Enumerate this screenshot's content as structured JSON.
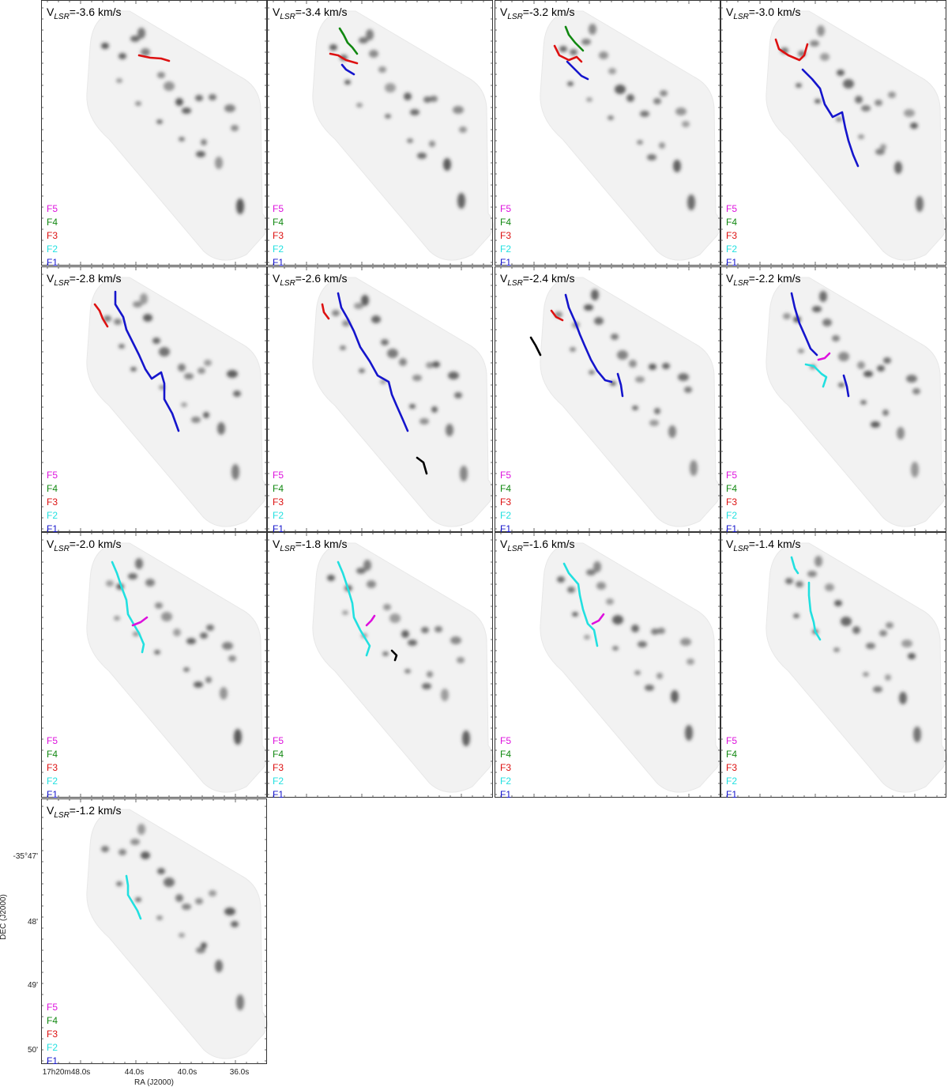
{
  "colors": {
    "F1": "#1515cc",
    "F2": "#22e0e0",
    "F3": "#dd1111",
    "F4": "#118811",
    "F5": "#dd11dd",
    "other": "#000000"
  },
  "chart_data": {
    "type": "channel-map grid",
    "xlabel": "RA (J2000)",
    "ylabel": "DEC (J2000)",
    "x_tick_labels": [
      "17h20m48.0s",
      "44.0s",
      "40.0s",
      "36.0s"
    ],
    "y_tick_labels": [
      "-35°47'",
      "48'",
      "49'",
      "50'"
    ],
    "legend": [
      "F5",
      "F4",
      "F3",
      "F2",
      "F1"
    ],
    "panels": [
      {
        "title_prefix": "V",
        "title_sub": "LSR",
        "title_suffix": "=-3.6 km/s",
        "velocity": -3.6,
        "filaments": [
          "F3"
        ]
      },
      {
        "title_prefix": "V",
        "title_sub": "LSR",
        "title_suffix": "=-3.4 km/s",
        "velocity": -3.4,
        "filaments": [
          "F4",
          "F3",
          "F1"
        ]
      },
      {
        "title_prefix": "V",
        "title_sub": "LSR",
        "title_suffix": "=-3.2 km/s",
        "velocity": -3.2,
        "filaments": [
          "F4",
          "F3",
          "F1"
        ]
      },
      {
        "title_prefix": "V",
        "title_sub": "LSR",
        "title_suffix": "=-3.0 km/s",
        "velocity": -3.0,
        "filaments": [
          "F3",
          "F1"
        ]
      },
      {
        "title_prefix": "V",
        "title_sub": "LSR",
        "title_suffix": "=-2.8 km/s",
        "velocity": -2.8,
        "filaments": [
          "F3",
          "F1"
        ]
      },
      {
        "title_prefix": "V",
        "title_sub": "LSR",
        "title_suffix": "=-2.6 km/s",
        "velocity": -2.6,
        "filaments": [
          "F3",
          "F1",
          "other"
        ]
      },
      {
        "title_prefix": "V",
        "title_sub": "LSR",
        "title_suffix": "=-2.4 km/s",
        "velocity": -2.4,
        "filaments": [
          "F3",
          "F1",
          "other"
        ]
      },
      {
        "title_prefix": "V",
        "title_sub": "LSR",
        "title_suffix": "=-2.2 km/s",
        "velocity": -2.2,
        "filaments": [
          "F1",
          "F2",
          "F5"
        ]
      },
      {
        "title_prefix": "V",
        "title_sub": "LSR",
        "title_suffix": "=-2.0 km/s",
        "velocity": -2.0,
        "filaments": [
          "F2",
          "F5"
        ]
      },
      {
        "title_prefix": "V",
        "title_sub": "LSR",
        "title_suffix": "=-1.8 km/s",
        "velocity": -1.8,
        "filaments": [
          "F2",
          "F5",
          "other"
        ]
      },
      {
        "title_prefix": "V",
        "title_sub": "LSR",
        "title_suffix": "=-1.6 km/s",
        "velocity": -1.6,
        "filaments": [
          "F2",
          "F5"
        ]
      },
      {
        "title_prefix": "V",
        "title_sub": "LSR",
        "title_suffix": "=-1.4 km/s",
        "velocity": -1.4,
        "filaments": [
          "F2"
        ]
      },
      {
        "title_prefix": "V",
        "title_sub": "LSR",
        "title_suffix": "=-1.2 km/s",
        "velocity": -1.2,
        "filaments": [
          "F2"
        ]
      }
    ]
  }
}
